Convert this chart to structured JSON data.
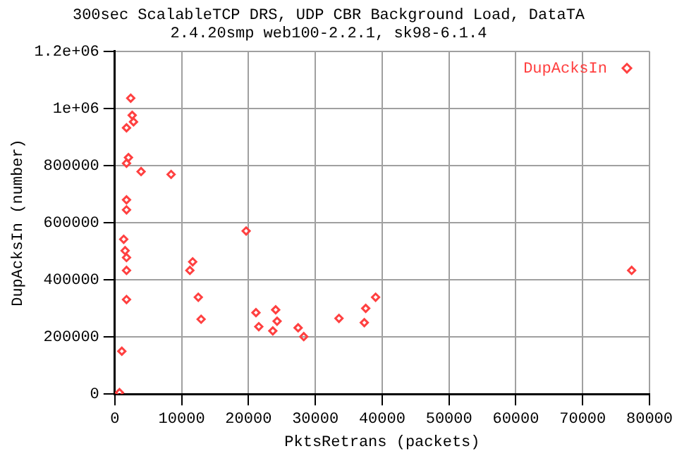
{
  "chart_data": {
    "type": "scatter",
    "title": "300sec ScalableTCP DRS, UDP CBR Background Load, DataTA",
    "subtitle": "2.4.20smp web100-2.2.1, sk98-6.1.4",
    "xlabel": "PktsRetrans (packets)",
    "ylabel": "DupAcksIn (number)",
    "series": [
      {
        "name": "DupAcksIn",
        "color": "#ff4040",
        "x": [
          2380,
          2600,
          2800,
          1750,
          2040,
          1750,
          3930,
          8420,
          1750,
          1750,
          19650,
          1330,
          1540,
          1750,
          11650,
          11230,
          1750,
          12490,
          1750,
          12910,
          21120,
          24070,
          24280,
          21540,
          23640,
          1050,
          700,
          27430,
          28270,
          33540,
          37540,
          37330,
          39020,
          77330
        ],
        "values": [
          1036000,
          976000,
          953000,
          932000,
          828000,
          808000,
          779000,
          769000,
          680000,
          645000,
          571000,
          542000,
          502000,
          478000,
          463000,
          433000,
          433000,
          339000,
          331000,
          262000,
          285000,
          295000,
          255000,
          236000,
          221000,
          150000,
          5000,
          232000,
          201000,
          265000,
          300000,
          250000,
          339000,
          433000
        ]
      }
    ],
    "xlim": [
      0,
      80000
    ],
    "xticks": [
      0,
      10000,
      20000,
      30000,
      40000,
      50000,
      60000,
      70000,
      80000
    ],
    "ylim": [
      0,
      1200000
    ],
    "yticks": [
      0,
      200000,
      400000,
      600000,
      800000,
      {
        "value": 1000000,
        "label": "1e+06"
      },
      {
        "value": 1200000,
        "label": "1.2e+06"
      }
    ],
    "grid": true,
    "legend": "top right",
    "marker": "diamond"
  }
}
